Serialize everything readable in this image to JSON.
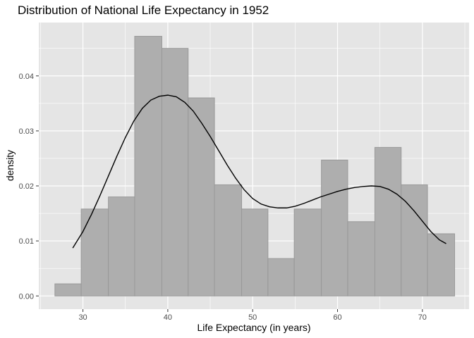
{
  "chart_data": {
    "type": "histogram",
    "title": "Distribution of National Life Expectancy in 1952",
    "xlabel": "Life Expectancy (in years)",
    "ylabel": "density",
    "xlim": [
      24.8,
      75.5
    ],
    "ylim": [
      -0.0024,
      0.0497
    ],
    "x_ticks": [
      30,
      40,
      50,
      60,
      70
    ],
    "x_tick_labels": [
      "30",
      "40",
      "50",
      "60",
      "70"
    ],
    "y_ticks": [
      0.0,
      0.01,
      0.02,
      0.03,
      0.04
    ],
    "y_tick_labels": [
      "0.00",
      "0.01",
      "0.02",
      "0.03",
      "0.04"
    ],
    "grid": true,
    "background_color": "#e5e5e5",
    "grid_color": "#ffffff",
    "bar_fill": "#aeaeae",
    "bar_outline": "#999999",
    "curve_color": "#000000",
    "bins": [
      {
        "x0": 26.7,
        "x1": 29.8,
        "density": 0.0022
      },
      {
        "x0": 29.8,
        "x1": 33.0,
        "density": 0.0158
      },
      {
        "x0": 33.0,
        "x1": 36.1,
        "density": 0.018
      },
      {
        "x0": 36.1,
        "x1": 39.3,
        "density": 0.0472
      },
      {
        "x0": 39.3,
        "x1": 42.4,
        "density": 0.045
      },
      {
        "x0": 42.4,
        "x1": 45.5,
        "density": 0.036
      },
      {
        "x0": 45.5,
        "x1": 48.7,
        "density": 0.0202
      },
      {
        "x0": 48.7,
        "x1": 51.8,
        "density": 0.0158
      },
      {
        "x0": 51.8,
        "x1": 54.9,
        "density": 0.0068
      },
      {
        "x0": 54.9,
        "x1": 58.1,
        "density": 0.0158
      },
      {
        "x0": 58.1,
        "x1": 61.2,
        "density": 0.0247
      },
      {
        "x0": 61.2,
        "x1": 64.4,
        "density": 0.0135
      },
      {
        "x0": 64.4,
        "x1": 67.5,
        "density": 0.027
      },
      {
        "x0": 67.5,
        "x1": 70.6,
        "density": 0.0202
      },
      {
        "x0": 70.6,
        "x1": 73.8,
        "density": 0.0113
      }
    ],
    "density_curve": [
      [
        28.8,
        0.0087
      ],
      [
        30.0,
        0.0117
      ],
      [
        31.0,
        0.0148
      ],
      [
        32.0,
        0.0182
      ],
      [
        33.0,
        0.0218
      ],
      [
        34.0,
        0.0254
      ],
      [
        35.0,
        0.0288
      ],
      [
        36.0,
        0.0318
      ],
      [
        37.0,
        0.0341
      ],
      [
        38.0,
        0.0356
      ],
      [
        39.0,
        0.0363
      ],
      [
        40.0,
        0.0365
      ],
      [
        41.0,
        0.0362
      ],
      [
        42.0,
        0.0352
      ],
      [
        43.0,
        0.0336
      ],
      [
        44.0,
        0.0314
      ],
      [
        45.0,
        0.029
      ],
      [
        46.0,
        0.0264
      ],
      [
        47.0,
        0.0238
      ],
      [
        48.0,
        0.0214
      ],
      [
        49.0,
        0.0193
      ],
      [
        50.0,
        0.0177
      ],
      [
        51.0,
        0.0167
      ],
      [
        52.0,
        0.0162
      ],
      [
        53.0,
        0.016
      ],
      [
        54.0,
        0.016
      ],
      [
        55.0,
        0.0163
      ],
      [
        56.0,
        0.0168
      ],
      [
        57.0,
        0.0174
      ],
      [
        58.0,
        0.018
      ],
      [
        59.0,
        0.0185
      ],
      [
        60.0,
        0.019
      ],
      [
        61.0,
        0.0194
      ],
      [
        62.0,
        0.0197
      ],
      [
        63.0,
        0.0199
      ],
      [
        64.0,
        0.02
      ],
      [
        65.0,
        0.0199
      ],
      [
        66.0,
        0.0194
      ],
      [
        67.0,
        0.0185
      ],
      [
        68.0,
        0.0172
      ],
      [
        69.0,
        0.0155
      ],
      [
        70.0,
        0.0136
      ],
      [
        71.0,
        0.0117
      ],
      [
        72.0,
        0.0102
      ],
      [
        72.8,
        0.0095
      ]
    ]
  }
}
